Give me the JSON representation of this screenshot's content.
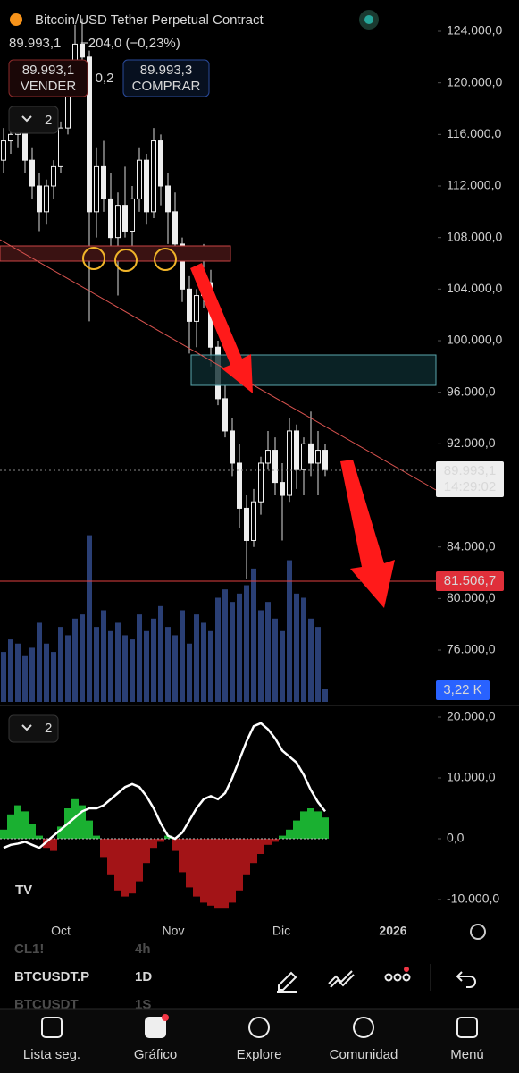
{
  "header": {
    "title": "Bitcoin/USD Tether Perpetual Contract",
    "price": "89.993,1",
    "change": "−204,0 (−0,23%)"
  },
  "trade": {
    "sell_price": "89.993,1",
    "sell_label": "VENDER",
    "spread": "0,2",
    "buy_price": "89.993,3",
    "buy_label": "COMPRAR"
  },
  "indicators_main": "2",
  "indicators_osc": "2",
  "chart": {
    "ylim": [
      71771,
      126428
    ],
    "yticks": [
      {
        "value": 124000,
        "label": "124.000,0"
      },
      {
        "value": 120000,
        "label": "120.000,0"
      },
      {
        "value": 116000,
        "label": "116.000,0"
      },
      {
        "value": 112000,
        "label": "112.000,0"
      },
      {
        "value": 108000,
        "label": "108.000,0"
      },
      {
        "value": 104000,
        "label": "104.000,0"
      },
      {
        "value": 100000,
        "label": "100.000,0"
      },
      {
        "value": 96000,
        "label": "96.000,0"
      },
      {
        "value": 92000,
        "label": "92.000,0"
      },
      {
        "value": 84000,
        "label": "84.000,0"
      },
      {
        "value": 80000,
        "label": "80.000,0"
      },
      {
        "value": 76000,
        "label": "76.000,0"
      }
    ],
    "candles": [
      [
        114000,
        116500,
        113000,
        115500
      ],
      [
        115500,
        117000,
        114500,
        116000
      ],
      [
        116000,
        118000,
        115000,
        117000
      ],
      [
        117000,
        117500,
        113000,
        114000
      ],
      [
        114000,
        115000,
        111000,
        112000
      ],
      [
        112000,
        113000,
        108500,
        110000
      ],
      [
        110000,
        112500,
        109000,
        112000
      ],
      [
        112000,
        114000,
        111000,
        113500
      ],
      [
        113500,
        117000,
        113000,
        116500
      ],
      [
        116500,
        121000,
        116000,
        120500
      ],
      [
        120500,
        124500,
        119500,
        123000
      ],
      [
        123000,
        125000,
        121000,
        122000
      ],
      [
        122000,
        122500,
        101500,
        110000
      ],
      [
        110000,
        115000,
        108000,
        113500
      ],
      [
        113500,
        115500,
        110000,
        111000
      ],
      [
        111000,
        113000,
        107000,
        108000
      ],
      [
        108000,
        111500,
        103500,
        110500
      ],
      [
        110500,
        113500,
        108000,
        108500
      ],
      [
        108500,
        112000,
        107000,
        111000
      ],
      [
        111000,
        115000,
        110000,
        114000
      ],
      [
        114000,
        114500,
        109000,
        110000
      ],
      [
        110000,
        116500,
        109500,
        115500
      ],
      [
        115500,
        116000,
        110500,
        112000
      ],
      [
        112000,
        113000,
        107500,
        110000
      ],
      [
        110000,
        111500,
        106500,
        107500
      ],
      [
        107500,
        108000,
        103000,
        104000
      ],
      [
        104000,
        105000,
        99000,
        101500
      ],
      [
        101500,
        104000,
        99500,
        103500
      ],
      [
        103500,
        107500,
        102500,
        104500
      ],
      [
        104500,
        105500,
        98000,
        99500
      ],
      [
        99500,
        100000,
        95000,
        95500
      ],
      [
        95500,
        96500,
        92500,
        93000
      ],
      [
        93000,
        94000,
        89500,
        90500
      ],
      [
        90500,
        92000,
        85500,
        87000
      ],
      [
        87000,
        88000,
        81500,
        84500
      ],
      [
        84500,
        88500,
        84000,
        87500
      ],
      [
        87500,
        91000,
        86500,
        90500
      ],
      [
        90500,
        93000,
        90000,
        91500
      ],
      [
        91500,
        92500,
        88000,
        89000
      ],
      [
        89000,
        90500,
        84500,
        88000
      ],
      [
        88000,
        94000,
        87500,
        93000
      ],
      [
        93000,
        93500,
        88500,
        90000
      ],
      [
        90000,
        92500,
        88000,
        92000
      ],
      [
        92000,
        94500,
        89500,
        90500
      ],
      [
        90500,
        93000,
        88000,
        91500
      ],
      [
        91500,
        92000,
        89500,
        90000
      ]
    ],
    "volumes": [
      12,
      15,
      14,
      11,
      13,
      19,
      14,
      12,
      18,
      16,
      20,
      21,
      40,
      18,
      22,
      17,
      19,
      16,
      15,
      21,
      17,
      20,
      23,
      18,
      16,
      22,
      14,
      21,
      19,
      17,
      25,
      27,
      24,
      26,
      28,
      32,
      22,
      24,
      20,
      17,
      34,
      26,
      25,
      20,
      18,
      3.22
    ],
    "last_price": "89.993,1",
    "countdown": "14:29:02",
    "level": "81.506,7",
    "volume_label": "3,22 K",
    "osc_ylim": [
      -13529,
      21765
    ],
    "osc_yticks": [
      {
        "value": 20000,
        "label": "20.000,0"
      },
      {
        "value": 10000,
        "label": "10.000,0"
      },
      {
        "value": 0,
        "label": "0,0"
      },
      {
        "value": -10000,
        "label": "-10.000,0"
      }
    ],
    "osc_line": [
      -1500,
      -1000,
      -800,
      -500,
      -1000,
      -1500,
      -500,
      500,
      1500,
      2500,
      3500,
      4500,
      5000,
      5000,
      5500,
      6500,
      7500,
      8500,
      9000,
      8500,
      7000,
      5000,
      2500,
      500,
      0,
      1000,
      3000,
      5000,
      6500,
      7000,
      6500,
      7500,
      10000,
      13000,
      16000,
      18500,
      19000,
      18000,
      16500,
      14500,
      13500,
      12500,
      10500,
      8000,
      6000,
      4500
    ],
    "osc_hist": [
      1500,
      4000,
      5500,
      4500,
      2500,
      500,
      -1500,
      -2000,
      2000,
      5000,
      6500,
      5500,
      3000,
      500,
      -3000,
      -6000,
      -8500,
      -9500,
      -9000,
      -7000,
      -4000,
      -1500,
      -500,
      500,
      -2000,
      -5500,
      -8000,
      -9500,
      -10500,
      -11000,
      -11500,
      -11500,
      -10500,
      -8500,
      -6000,
      -4000,
      -2500,
      -1000,
      -500,
      500,
      1500,
      3000,
      4500,
      5000,
      4500,
      3500
    ],
    "xticks": [
      "Oct",
      "Nov",
      "Dic",
      "2026"
    ]
  },
  "toolbar": {
    "symbols": [
      {
        "symbol": "CL1!",
        "interval": "4h"
      },
      {
        "symbol": "BTCUSDT.P",
        "interval": "1D"
      },
      {
        "symbol": "BTCUSDT",
        "interval": "1S"
      }
    ]
  },
  "nav": [
    "Lista seg.",
    "Gráfico",
    "Explore",
    "Comunidad",
    "Menú"
  ]
}
